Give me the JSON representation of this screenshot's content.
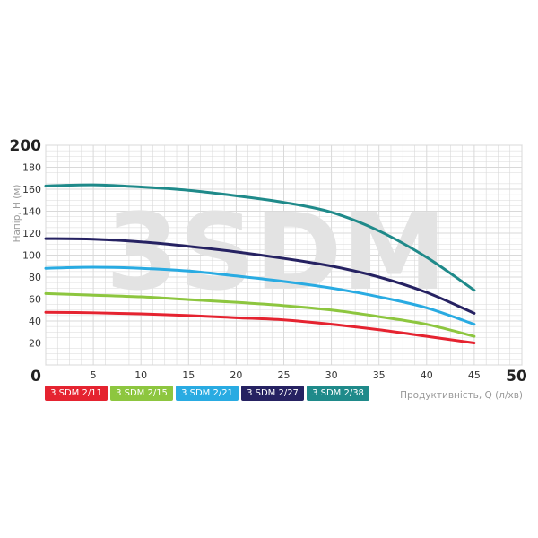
{
  "chart_data": {
    "type": "line",
    "title": "",
    "watermark": "3SDM",
    "xlabel": "Продуктивність, Q (л/хв)",
    "ylabel": "Напір, H (м)",
    "xlim": [
      0,
      50
    ],
    "ylim": [
      0,
      200
    ],
    "xticks": [
      "0",
      "5",
      "10",
      "15",
      "20",
      "25",
      "30",
      "35",
      "40",
      "45",
      "50"
    ],
    "yticks": [
      "0",
      "20",
      "40",
      "60",
      "80",
      "100",
      "120",
      "140",
      "160",
      "180",
      "200"
    ],
    "grid": true,
    "legend_position": "bottom",
    "x": [
      0,
      5,
      10,
      15,
      20,
      25,
      30,
      35,
      40,
      45
    ],
    "series": [
      {
        "name": "3 SDM 2/11",
        "color": "#e52330",
        "values": [
          48,
          47.5,
          46.5,
          45,
          43,
          41,
          37,
          32,
          26,
          20
        ]
      },
      {
        "name": "3 SDM 2/15",
        "color": "#8dc63f",
        "values": [
          65,
          63.5,
          62,
          59.5,
          57,
          54,
          50,
          44,
          37,
          26
        ]
      },
      {
        "name": "3 SDM 2/21",
        "color": "#29abe2",
        "values": [
          88,
          89,
          88,
          85.5,
          81,
          76,
          70,
          62,
          52,
          37
        ]
      },
      {
        "name": "3 SDM 2/27",
        "color": "#262262",
        "values": [
          115,
          114.5,
          112,
          108,
          103,
          97,
          90,
          80,
          66,
          47
        ]
      },
      {
        "name": "3 SDM 2/38",
        "color": "#1f8a8a",
        "values": [
          163,
          164,
          162,
          159,
          154,
          148,
          139,
          122,
          98,
          68
        ]
      }
    ]
  }
}
